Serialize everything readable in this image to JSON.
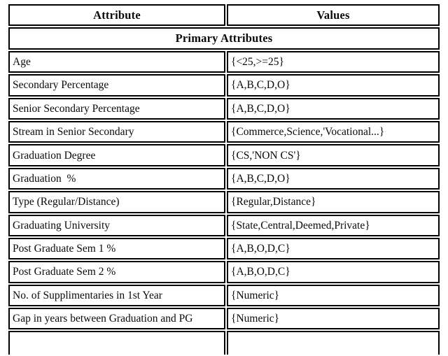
{
  "table": {
    "columns": [
      "Attribute",
      "Values"
    ],
    "section_header": "Primary Attributes",
    "rows": [
      {
        "attribute": "Age",
        "values": "{<25,>=25}"
      },
      {
        "attribute": "Secondary Percentage",
        "values": "{A,B,C,D,O}"
      },
      {
        "attribute": "Senior Secondary Percentage",
        "values": "{A,B,C,D,O}"
      },
      {
        "attribute": "Stream in Senior Secondary",
        "values": "{Commerce,Science,'Vocational...}"
      },
      {
        "attribute": "Graduation Degree",
        "values": "{CS,'NON CS'}"
      },
      {
        "attribute": "Graduation  %",
        "values": "{A,B,C,D,O}"
      },
      {
        "attribute": "Type (Regular/Distance)",
        "values": "{Regular,Distance}"
      },
      {
        "attribute": "Graduating University",
        "values": "{State,Central,Deemed,Private}"
      },
      {
        "attribute": "Post Graduate Sem 1 %",
        "values": "{A,B,O,D,C}"
      },
      {
        "attribute": "Post Graduate Sem 2 %",
        "values": "{A,B,O,D,C}"
      },
      {
        "attribute": "No. of Supplimentaries in 1st Year",
        "values": "{Numeric}"
      },
      {
        "attribute": "Gap in years between Graduation and PG",
        "values": "{Numeric}"
      }
    ]
  },
  "colors": {
    "border": "#000000",
    "text": "#0a0a0a",
    "background": "#ffffff"
  }
}
